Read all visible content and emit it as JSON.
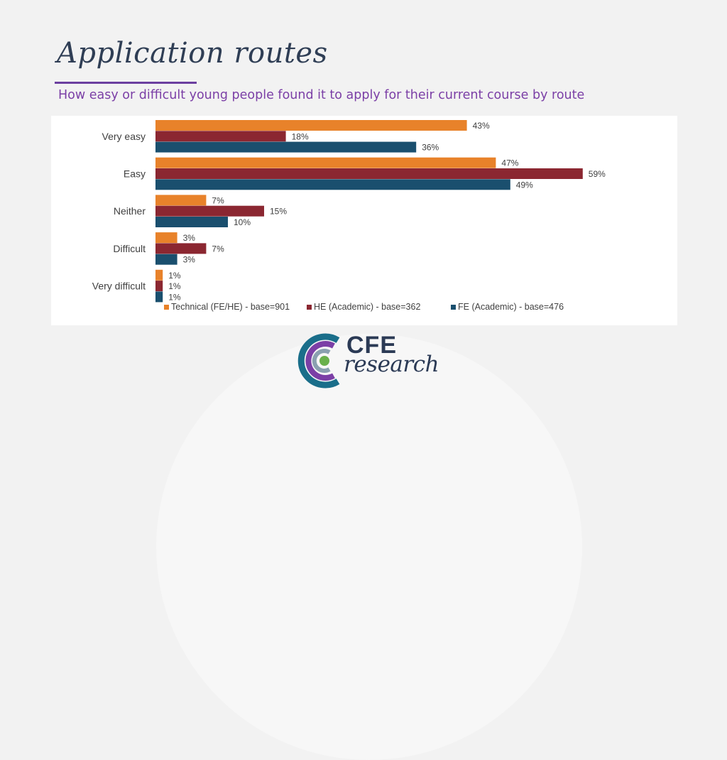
{
  "slide": {
    "title": "Application routes",
    "subtitle": "How easy or difficult young people found it to apply for their current course by route"
  },
  "logo": {
    "text_top": "CFE",
    "text_bottom": "research"
  },
  "colors": {
    "technical": "#e8822a",
    "he_academic": "#8b2731",
    "fe_academic": "#1a4f6e"
  },
  "chart_data": {
    "type": "bar",
    "orientation": "horizontal",
    "categories": [
      "Very easy",
      "Easy",
      "Neither",
      "Difficult",
      "Very difficult"
    ],
    "series": [
      {
        "name": "Technical (FE/HE) - base=901",
        "color": "#e8822a",
        "values": [
          43,
          47,
          7,
          3,
          1
        ]
      },
      {
        "name": "HE (Academic) - base=362",
        "color": "#8b2731",
        "values": [
          18,
          59,
          15,
          7,
          1
        ]
      },
      {
        "name": "FE (Academic) - base=476",
        "color": "#1a4f6e",
        "values": [
          36,
          49,
          10,
          3,
          1
        ]
      }
    ],
    "value_suffix": "%",
    "legend_position": "bottom",
    "grid": false
  }
}
